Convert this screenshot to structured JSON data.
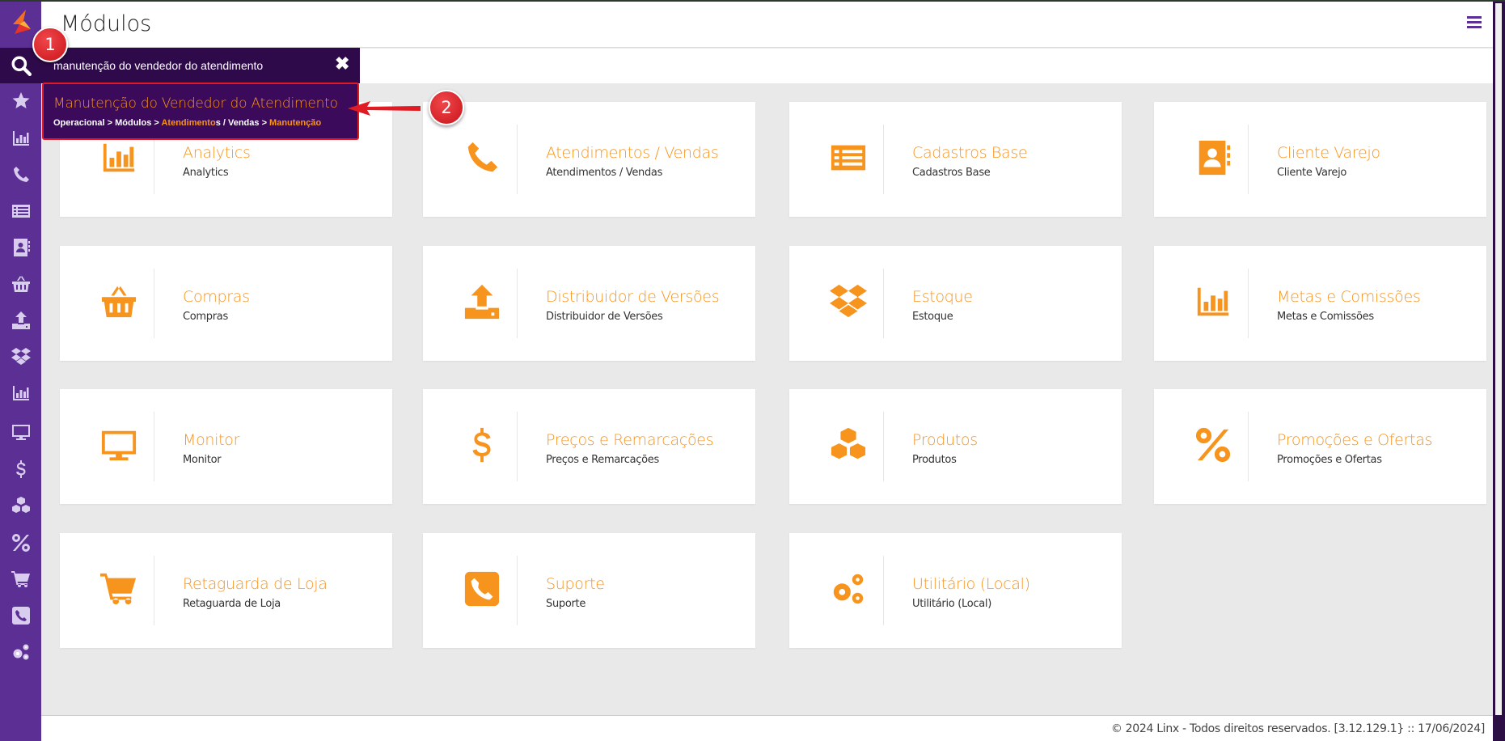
{
  "header": {
    "title": "Módulos",
    "menu_icon": "hamburger-icon"
  },
  "colors": {
    "sidebar": "#5b2f93",
    "accent": "#f7941d",
    "annotation": "#e01b24"
  },
  "sidebar": {
    "items": [
      "search-icon",
      "star-icon",
      "bar-chart-icon",
      "phone-icon",
      "list-icon",
      "contact-book-icon",
      "basket-icon",
      "upload-icon",
      "dropbox-icon",
      "bar-chart-icon",
      "monitor-icon",
      "dollar-icon",
      "cubes-icon",
      "percent-icon",
      "cart-icon",
      "phone-square-icon",
      "cogs-icon"
    ]
  },
  "search": {
    "value": "manutenção do vendedor do atendimento",
    "result": {
      "title": "Manutenção do Vendedor do Atendimento",
      "breadcrumb": [
        {
          "text": "Operacional > Módulos > ",
          "hl": false
        },
        {
          "text": "Atendimento",
          "hl": true
        },
        {
          "text": "s / Vendas > ",
          "hl": false
        },
        {
          "text": "Manutenção",
          "hl": true
        }
      ]
    }
  },
  "annotations": [
    "1",
    "2"
  ],
  "modules": [
    {
      "title": "Analytics",
      "subtitle": "Analytics",
      "icon": "bar-chart-icon"
    },
    {
      "title": "Atendimentos / Vendas",
      "subtitle": "Atendimentos / Vendas",
      "icon": "phone-icon"
    },
    {
      "title": "Cadastros Base",
      "subtitle": "Cadastros Base",
      "icon": "list-icon"
    },
    {
      "title": "Cliente Varejo",
      "subtitle": "Cliente Varejo",
      "icon": "contact-book-icon"
    },
    {
      "title": "Compras",
      "subtitle": "Compras",
      "icon": "basket-icon"
    },
    {
      "title": "Distribuidor de Versões",
      "subtitle": "Distribuidor de Versões",
      "icon": "upload-icon"
    },
    {
      "title": "Estoque",
      "subtitle": "Estoque",
      "icon": "dropbox-icon"
    },
    {
      "title": "Metas e Comissões",
      "subtitle": "Metas e Comissões",
      "icon": "bar-chart-icon"
    },
    {
      "title": "Monitor",
      "subtitle": "Monitor",
      "icon": "monitor-icon"
    },
    {
      "title": "Preços e Remarcações",
      "subtitle": "Preços e Remarcações",
      "icon": "dollar-icon"
    },
    {
      "title": "Produtos",
      "subtitle": "Produtos",
      "icon": "cubes-icon"
    },
    {
      "title": "Promoções e Ofertas",
      "subtitle": "Promoções e Ofertas",
      "icon": "percent-icon"
    },
    {
      "title": "Retaguarda de Loja",
      "subtitle": "Retaguarda de Loja",
      "icon": "cart-icon"
    },
    {
      "title": "Suporte",
      "subtitle": "Suporte",
      "icon": "phone-square-icon"
    },
    {
      "title": "Utilitário (Local)",
      "subtitle": "Utilitário (Local)",
      "icon": "cogs-icon"
    }
  ],
  "footer": {
    "text": "© 2024 Linx - Todos direitos reservados. [3.12.129.1} :: 17/06/2024]"
  }
}
